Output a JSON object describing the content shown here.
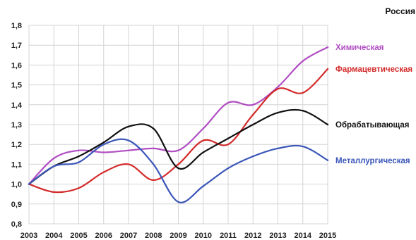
{
  "chart_data": {
    "type": "line",
    "title": "Россия",
    "x": [
      2003,
      2004,
      2005,
      2006,
      2007,
      2008,
      2009,
      2010,
      2011,
      2012,
      2013,
      2014,
      2015
    ],
    "xlabel": "",
    "ylabel": "",
    "ylim": [
      0.8,
      1.8
    ],
    "yticks": [
      0.8,
      0.9,
      1.0,
      1.1,
      1.2,
      1.3,
      1.4,
      1.5,
      1.6,
      1.7,
      1.8
    ],
    "grid": true,
    "legend": "inline-right",
    "series": [
      {
        "name": "Химическая",
        "color": "#b04ec2",
        "values": [
          1.0,
          1.13,
          1.17,
          1.16,
          1.17,
          1.18,
          1.17,
          1.28,
          1.41,
          1.4,
          1.49,
          1.62,
          1.69
        ]
      },
      {
        "name": "Фармацевтическая",
        "color": "#d42a2a",
        "values": [
          1.0,
          0.96,
          0.98,
          1.06,
          1.1,
          1.02,
          1.1,
          1.22,
          1.2,
          1.35,
          1.48,
          1.46,
          1.58
        ]
      },
      {
        "name": "Обрабатывающая",
        "color": "#111111",
        "values": [
          1.0,
          1.09,
          1.14,
          1.21,
          1.29,
          1.28,
          1.08,
          1.16,
          1.23,
          1.3,
          1.36,
          1.37,
          1.3
        ]
      },
      {
        "name": "Металлургическая",
        "color": "#3a56b8",
        "values": [
          1.0,
          1.09,
          1.11,
          1.2,
          1.22,
          1.1,
          0.91,
          0.99,
          1.08,
          1.14,
          1.18,
          1.19,
          1.12
        ]
      }
    ]
  }
}
